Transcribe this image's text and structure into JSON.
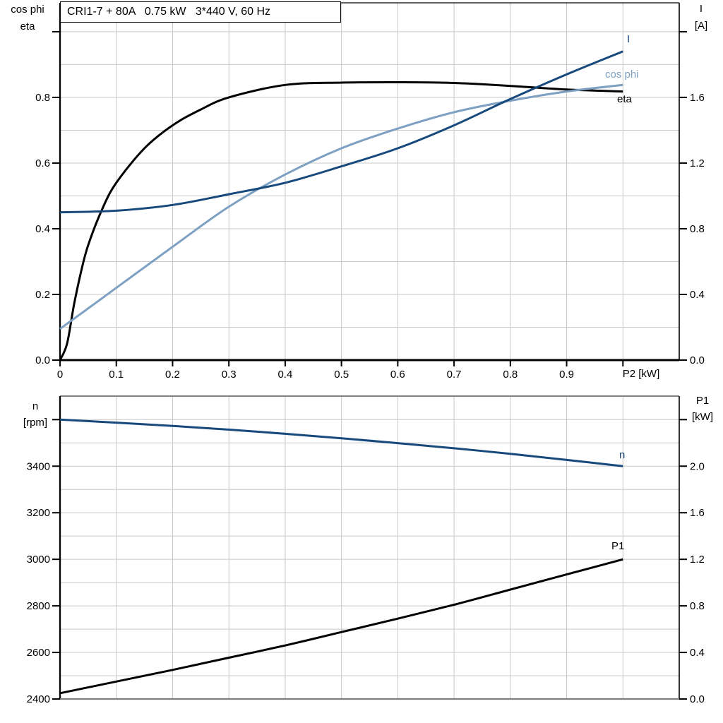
{
  "colors": {
    "dark_blue": "#17497c",
    "light_blue": "#7da0c3",
    "black": "#000000",
    "grid": "#c8c8c8",
    "frame_gray": "#808080"
  },
  "chart_data": [
    {
      "type": "line",
      "title": "CRI1-7 + 80A   0.75 kW   3*440 V, 60 Hz",
      "x_axis": {
        "label": "P2 [kW]",
        "range": [
          0,
          1.1
        ],
        "tick_values": [
          0,
          0.1,
          0.2,
          0.3,
          0.4,
          0.5,
          0.6,
          0.7,
          0.8,
          0.9
        ],
        "tick_labels": [
          "0",
          "0.1",
          "0.2",
          "0.3",
          "0.4",
          "0.5",
          "0.6",
          "0.7",
          "0.8",
          "0.9"
        ],
        "extra_ticks": [
          1.0
        ],
        "grid_min": 0.1,
        "grid_step": 0.1,
        "grid_max": 1.0
      },
      "y_left": {
        "label_lines": [
          "cos phi",
          "eta"
        ],
        "range": [
          0,
          1.088
        ],
        "tick_values": [
          0,
          0.2,
          0.4,
          0.6,
          0.8
        ],
        "tick_labels": [
          "0.0",
          "0.2",
          "0.4",
          "0.6",
          "0.8"
        ],
        "extra_ticks": [
          1.0
        ],
        "grid_min": 0.1,
        "grid_step": 0.1,
        "grid_max": 1.0
      },
      "y_right": {
        "label_lines": [
          "I",
          "[A]"
        ],
        "range": [
          0,
          2.176
        ],
        "tick_values": [
          0,
          0.4,
          0.8,
          1.2,
          1.6
        ],
        "tick_labels": [
          "0.0",
          "0.4",
          "0.8",
          "1.2",
          "1.6"
        ],
        "extra_ticks": [
          2.0
        ]
      },
      "series": [
        {
          "name": "eta",
          "label": "eta",
          "axis": "left",
          "color": "#000000",
          "x": [
            0,
            0.0125,
            0.025,
            0.0375,
            0.05,
            0.075,
            0.1,
            0.15,
            0.2,
            0.25,
            0.3,
            0.4,
            0.5,
            0.6,
            0.7,
            0.8,
            0.9,
            1.0
          ],
          "y": [
            0,
            0.05,
            0.17,
            0.27,
            0.35,
            0.46,
            0.54,
            0.645,
            0.715,
            0.763,
            0.8,
            0.838,
            0.845,
            0.846,
            0.844,
            0.835,
            0.824,
            0.818
          ]
        },
        {
          "name": "cos phi",
          "label": "cos phi",
          "axis": "left",
          "color": "#7da0c3",
          "x": [
            0,
            0.1,
            0.2,
            0.3,
            0.4,
            0.5,
            0.6,
            0.7,
            0.8,
            0.9,
            1.0
          ],
          "y": [
            0.095,
            0.22,
            0.345,
            0.467,
            0.565,
            0.645,
            0.705,
            0.755,
            0.79,
            0.818,
            0.838
          ]
        },
        {
          "name": "I",
          "label": "I",
          "axis": "right",
          "color": "#17497c",
          "x": [
            0,
            0.1,
            0.2,
            0.3,
            0.4,
            0.5,
            0.6,
            0.7,
            0.8,
            0.9,
            1.0
          ],
          "y": [
            0.9,
            0.91,
            0.945,
            1.01,
            1.08,
            1.18,
            1.29,
            1.43,
            1.59,
            1.74,
            1.88
          ]
        }
      ]
    },
    {
      "type": "line",
      "title": "",
      "x_axis": {
        "label": "",
        "range": [
          0,
          1.1
        ],
        "tick_values": [],
        "tick_labels": [],
        "extra_ticks": [],
        "grid_min": 0.1,
        "grid_step": 0.1,
        "grid_max": 1.0
      },
      "y_left": {
        "label_lines": [
          "n",
          "[rpm]"
        ],
        "range": [
          2400,
          3701
        ],
        "tick_values": [
          2400,
          2600,
          2800,
          3000,
          3200,
          3400
        ],
        "tick_labels": [
          "2400",
          "2600",
          "2800",
          "3000",
          "3200",
          "3400"
        ],
        "extra_ticks": [
          3600
        ],
        "grid_min": 2500,
        "grid_step": 100,
        "grid_max": 3600
      },
      "y_right": {
        "label_lines": [
          "P1",
          "[kW]"
        ],
        "range": [
          0,
          2.602
        ],
        "tick_values": [
          0,
          0.4,
          0.8,
          1.2,
          1.6,
          2.0
        ],
        "tick_labels": [
          "0.0",
          "0.4",
          "0.8",
          "1.2",
          "1.6",
          "2.0"
        ],
        "extra_ticks": [
          2.4
        ]
      },
      "series": [
        {
          "name": "n",
          "label": "n",
          "axis": "left",
          "color": "#17497c",
          "x": [
            0,
            0.1,
            0.2,
            0.3,
            0.4,
            0.5,
            0.6,
            0.7,
            0.8,
            0.9,
            1.0
          ],
          "y": [
            3600,
            3587,
            3573,
            3557,
            3539,
            3520,
            3499,
            3477,
            3453,
            3427,
            3400
          ]
        },
        {
          "name": "P1",
          "label": "P1",
          "axis": "right",
          "color": "#000000",
          "x": [
            0,
            0.1,
            0.2,
            0.3,
            0.4,
            0.5,
            0.6,
            0.7,
            0.8,
            0.9,
            1.0
          ],
          "y": [
            0.05,
            0.15,
            0.25,
            0.355,
            0.46,
            0.575,
            0.69,
            0.81,
            0.94,
            1.07,
            1.2
          ]
        }
      ]
    }
  ]
}
